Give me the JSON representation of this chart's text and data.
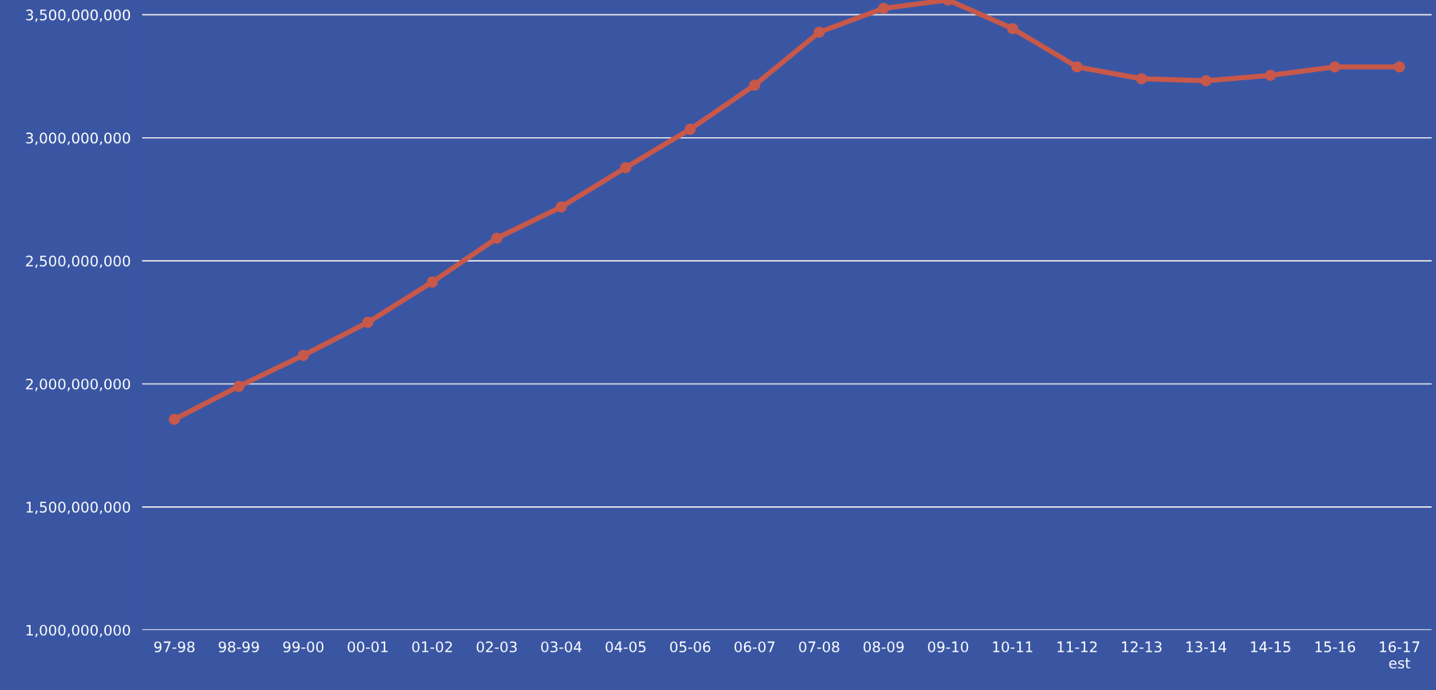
{
  "chart_data": {
    "type": "line",
    "categories": [
      "97-98",
      "98-99",
      "99-00",
      "00-01",
      "01-02",
      "02-03",
      "03-04",
      "04-05",
      "05-06",
      "06-07",
      "07-08",
      "08-09",
      "09-10",
      "10-11",
      "11-12",
      "12-13",
      "13-14",
      "14-15",
      "15-16",
      "16-17\nest"
    ],
    "series": [
      {
        "color": "#c8584a",
        "values": [
          1856000000,
          1990000000,
          2116000000,
          2250000000,
          2414000000,
          2592000000,
          2719000000,
          2879000000,
          3035000000,
          3214000000,
          3429000000,
          3526000000,
          3560000000,
          3444000000,
          3288000000,
          3240000000,
          3232000000,
          3254000000,
          3288000000,
          3288000000
        ]
      }
    ],
    "ylim": [
      1000000000,
      3560000000
    ],
    "yticks": [
      {
        "value": 1000000000,
        "label": "1,000,000,000"
      },
      {
        "value": 1500000000,
        "label": "1,500,000,000"
      },
      {
        "value": 2000000000,
        "label": "2,000,000,000"
      },
      {
        "value": 2500000000,
        "label": "2,500,000,000"
      },
      {
        "value": 3000000000,
        "label": "3,000,000,000"
      },
      {
        "value": 3500000000,
        "label": "3,500,000,000"
      }
    ],
    "grid": "y",
    "marker": "circle",
    "line_style": "solid"
  }
}
